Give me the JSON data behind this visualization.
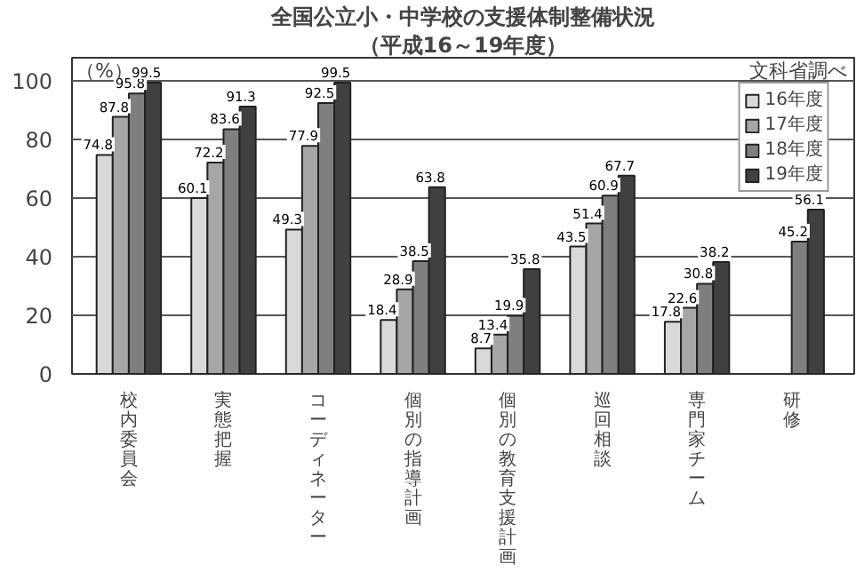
{
  "chart_data": {
    "type": "bar",
    "title": "全国公立小・中学校の支援体制整備状況",
    "subtitle": "（平成16～19年度）",
    "ylabel": "（%）",
    "annotations": [
      "文科省調べ"
    ],
    "categories": [
      "校内委員会",
      "実態把握",
      "コーディネーター",
      "個別の指導計画",
      "個別の教育支援計画",
      "巡回相談",
      "専門家チーム",
      "研修"
    ],
    "series": [
      {
        "name": "16年度",
        "color": "#d9d9d9",
        "values": [
          74.8,
          60.1,
          49.3,
          18.4,
          8.7,
          43.5,
          17.8,
          null
        ]
      },
      {
        "name": "17年度",
        "color": "#a6a6a6",
        "values": [
          87.8,
          72.2,
          77.9,
          28.9,
          13.4,
          51.4,
          22.6,
          null
        ]
      },
      {
        "name": "18年度",
        "color": "#7f7f7f",
        "values": [
          95.8,
          83.6,
          92.5,
          38.5,
          19.9,
          60.9,
          30.8,
          45.2
        ]
      },
      {
        "name": "19年度",
        "color": "#404040",
        "values": [
          99.5,
          91.3,
          99.5,
          63.8,
          35.8,
          67.7,
          38.2,
          56.1
        ]
      }
    ],
    "ylim": [
      0,
      108
    ],
    "yticks": [
      0,
      20,
      40,
      60,
      80,
      100
    ],
    "grid": "y",
    "legend": "top right",
    "data_labels": true
  }
}
